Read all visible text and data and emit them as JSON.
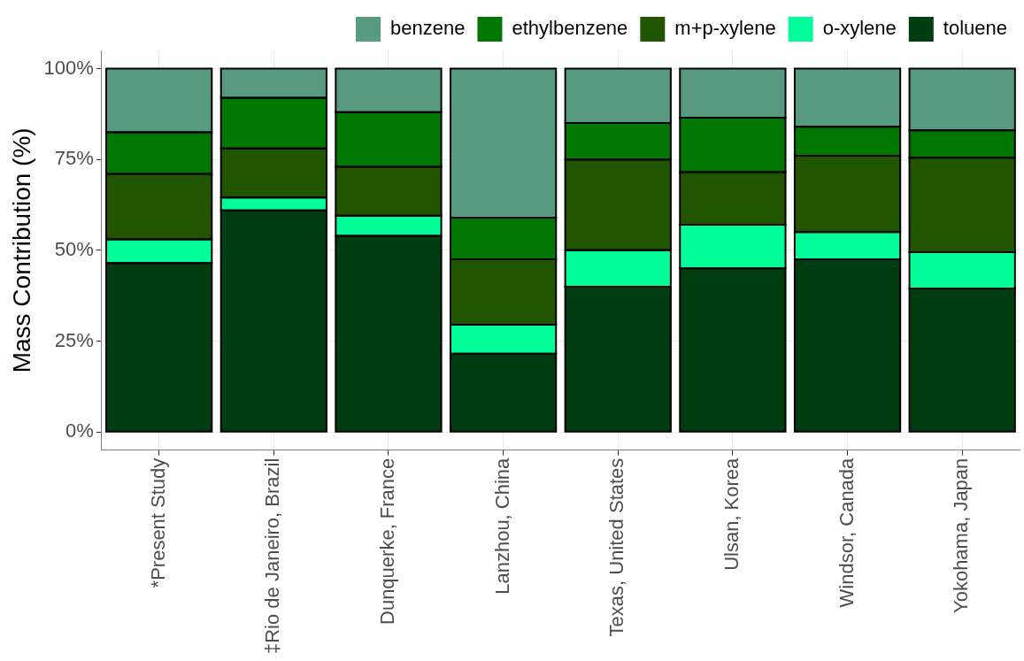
{
  "chart_data": {
    "type": "bar",
    "stacked": true,
    "ylabel": "Mass Contribution (%)",
    "categories": [
      "*Present Study",
      "‡Rio de Janeiro, Brazil",
      "Dunquerke, France",
      "Lanzhou, China",
      "Texas, United States",
      "Ulsan, Korea",
      "Windsor, Canada",
      "Yokohama, Japan"
    ],
    "series": [
      {
        "name": "toluene",
        "color": "#003d10",
        "values": [
          46.5,
          61,
          54,
          21.5,
          40,
          45,
          47.5,
          39.5
        ]
      },
      {
        "name": "o-xylene",
        "color": "#00ff99",
        "values": [
          6.5,
          3.5,
          5.5,
          8,
          10,
          12,
          7.5,
          10
        ]
      },
      {
        "name": "m+p-xylene",
        "color": "#225500",
        "values": [
          18,
          13.5,
          13.5,
          18,
          25,
          14.5,
          21,
          26
        ]
      },
      {
        "name": "ethylbenzene",
        "color": "#007700",
        "values": [
          11.5,
          14,
          15,
          11.5,
          10,
          15,
          8,
          7.5
        ]
      },
      {
        "name": "benzene",
        "color": "#579a80",
        "values": [
          17.5,
          8,
          12,
          41,
          15,
          13.5,
          16,
          17
        ]
      }
    ],
    "ylim": [
      -5,
      105
    ],
    "yticks": [
      {
        "value": 0,
        "label": "0%"
      },
      {
        "value": 25,
        "label": "25%"
      },
      {
        "value": 50,
        "label": "50%"
      },
      {
        "value": 75,
        "label": "75%"
      },
      {
        "value": 100,
        "label": "100%"
      }
    ],
    "grid": true,
    "legend": "top"
  }
}
